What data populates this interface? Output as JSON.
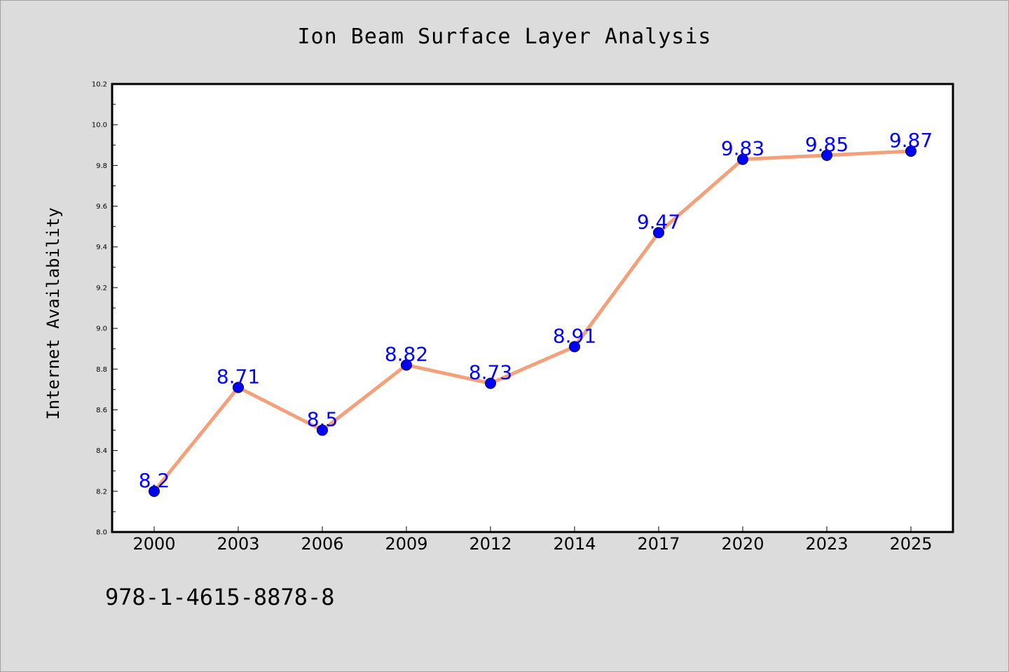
{
  "chart_data": {
    "type": "line",
    "title": "Ion Beam Surface Layer Analysis",
    "xlabel": "",
    "ylabel": "Internet Availability",
    "categories": [
      "2000",
      "2003",
      "2006",
      "2009",
      "2012",
      "2014",
      "2017",
      "2020",
      "2023",
      "2025"
    ],
    "series": [
      {
        "values": [
          8.2,
          8.71,
          8.5,
          8.82,
          8.73,
          8.91,
          9.47,
          9.83,
          9.85,
          9.87
        ],
        "data_labels": [
          "8.2",
          "8.71",
          "8.5",
          "8.82",
          "8.73",
          "8.91",
          "9.47",
          "9.83",
          "9.85",
          "9.87"
        ],
        "line_color": "#f4a07a",
        "marker_color": "#0000ff"
      }
    ],
    "ylim": [
      8.0,
      10.2
    ],
    "y_ticks": [
      "8.0",
      "8.2",
      "8.4",
      "8.6",
      "8.8",
      "9.0",
      "9.2",
      "9.4",
      "9.6",
      "9.8",
      "10.0",
      "10.2"
    ],
    "grid": false,
    "legend": "none"
  },
  "footnote": "978-1-4615-8878-8",
  "colors": {
    "background": "#dcdcdc",
    "plot_area": "#ffffff",
    "line": "#f4a07a",
    "marker": "#0000ff",
    "data_label": "#0000ff"
  }
}
